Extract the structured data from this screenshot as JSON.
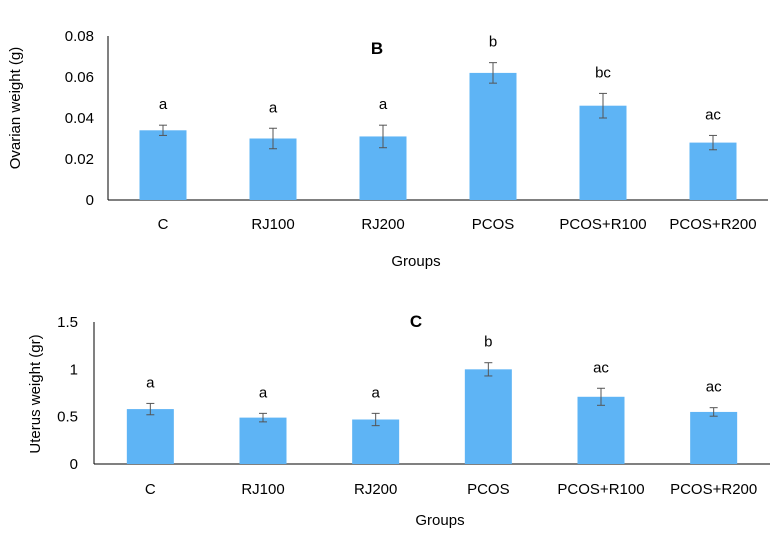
{
  "colors": {
    "bar": "#5eb4f5",
    "error_bar": "#555555",
    "axis": "#000000"
  },
  "chart_data": [
    {
      "type": "bar",
      "panel_label": "B",
      "title": "",
      "xlabel": "Groups",
      "ylabel": "Ovarian weight (g)",
      "ylim": [
        0,
        0.08
      ],
      "yticks": [
        0,
        0.02,
        0.04,
        0.06,
        0.08
      ],
      "ytick_labels": [
        "0",
        "0.02",
        "0.04",
        "0.06",
        "0.08"
      ],
      "grid": false,
      "categories": [
        "C",
        "RJ100",
        "RJ200",
        "PCOS",
        "PCOS+R100",
        "PCOS+R200"
      ],
      "values": [
        0.034,
        0.03,
        0.031,
        0.062,
        0.046,
        0.028
      ],
      "errors": [
        0.0025,
        0.005,
        0.0055,
        0.005,
        0.006,
        0.0035
      ],
      "significance_labels": [
        "a",
        "a",
        "a",
        "b",
        "bc",
        "ac"
      ]
    },
    {
      "type": "bar",
      "panel_label": "C",
      "title": "",
      "xlabel": "Groups",
      "ylabel": "Uterus weight (gr)",
      "ylim": [
        0,
        1.5
      ],
      "yticks": [
        0,
        0.5,
        1,
        1.5
      ],
      "ytick_labels": [
        "0",
        "0.5",
        "1",
        "1.5"
      ],
      "grid": false,
      "categories": [
        "C",
        "RJ100",
        "RJ200",
        "PCOS",
        "PCOS+R100",
        "PCOS+R200"
      ],
      "values": [
        0.58,
        0.49,
        0.47,
        1.0,
        0.71,
        0.55
      ],
      "errors": [
        0.06,
        0.045,
        0.065,
        0.07,
        0.09,
        0.045
      ],
      "significance_labels": [
        "a",
        "a",
        "a",
        "b",
        "ac",
        "ac"
      ]
    }
  ]
}
